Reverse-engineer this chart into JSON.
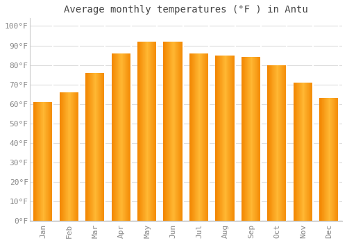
{
  "title": "Average monthly temperatures (°F ) in Antu",
  "months": [
    "Jan",
    "Feb",
    "Mar",
    "Apr",
    "May",
    "Jun",
    "Jul",
    "Aug",
    "Sep",
    "Oct",
    "Nov",
    "Dec"
  ],
  "values": [
    61,
    66,
    76,
    86,
    92,
    92,
    86,
    85,
    84,
    80,
    71,
    63
  ],
  "bar_color_light": "#FFB733",
  "bar_color_dark": "#F28500",
  "background_color": "#FFFFFF",
  "grid_color": "#DDDDDD",
  "yticks": [
    0,
    10,
    20,
    30,
    40,
    50,
    60,
    70,
    80,
    90,
    100
  ],
  "ylim": [
    0,
    104
  ],
  "title_fontsize": 10,
  "tick_fontsize": 8,
  "font_color": "#888888",
  "title_color": "#444444"
}
